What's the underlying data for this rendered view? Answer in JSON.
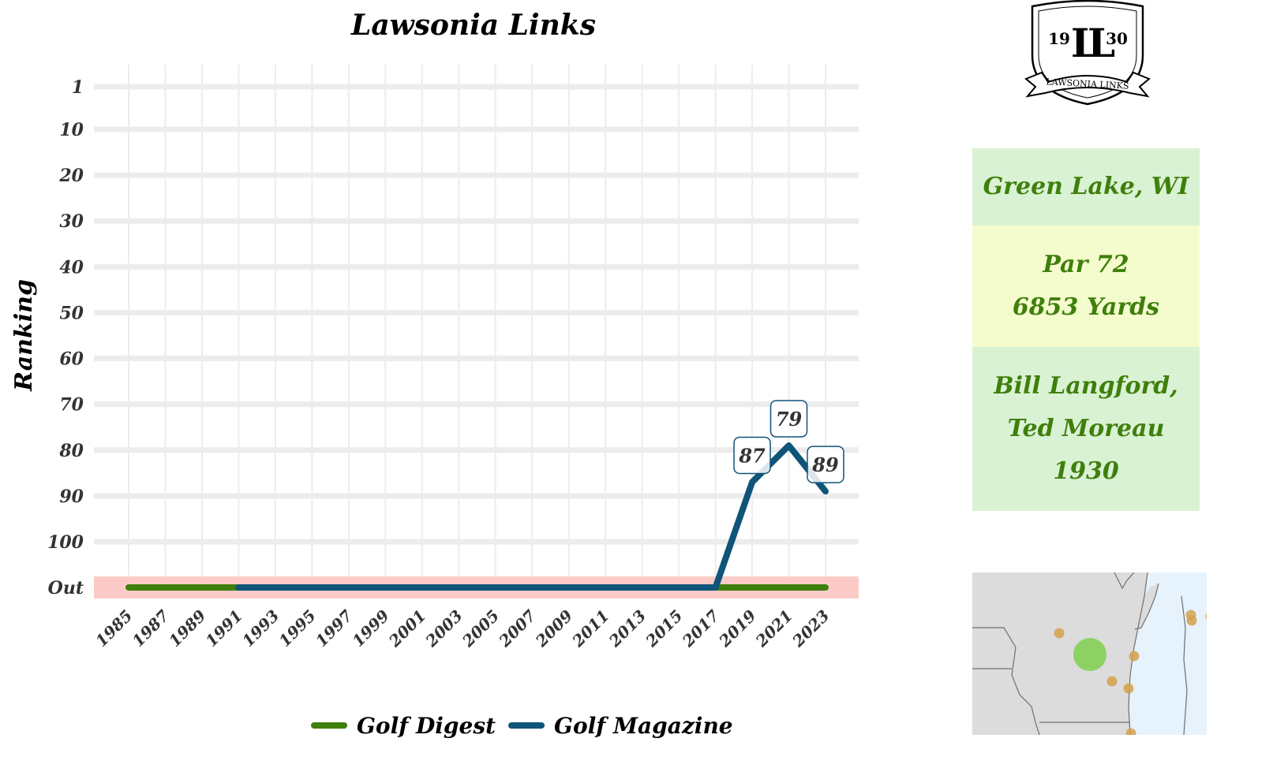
{
  "chart_data": {
    "type": "line",
    "title": "Lawsonia Links",
    "ylabel": "Ranking",
    "xlabel": "",
    "x_ticks": [
      "1985",
      "1987",
      "1989",
      "1991",
      "1993",
      "1995",
      "1997",
      "1999",
      "2001",
      "2003",
      "2005",
      "2007",
      "2009",
      "2011",
      "2013",
      "2015",
      "2017",
      "2019",
      "2021",
      "2023"
    ],
    "y_ticks": [
      "1",
      "10",
      "20",
      "30",
      "40",
      "50",
      "60",
      "70",
      "80",
      "90",
      "100",
      "Out"
    ],
    "y_tick_values": [
      1,
      10,
      20,
      30,
      40,
      50,
      60,
      70,
      80,
      90,
      100,
      110
    ],
    "y_reversed": true,
    "out_value": 110,
    "out_band_color": "#fccbc7",
    "grid": true,
    "legend_position": "bottom",
    "series": [
      {
        "name": "Golf Digest",
        "color": "#3f7f0c",
        "points": [
          {
            "x": 1985,
            "y": "Out"
          },
          {
            "x": 2023,
            "y": "Out"
          }
        ]
      },
      {
        "name": "Golf Magazine",
        "color": "#0f5479",
        "points": [
          {
            "x": 1991,
            "y": "Out"
          },
          {
            "x": 2017,
            "y": "Out"
          },
          {
            "x": 2019,
            "y": 87
          },
          {
            "x": 2021,
            "y": 79
          },
          {
            "x": 2023,
            "y": 89
          }
        ]
      }
    ],
    "data_labels": [
      {
        "series": "Golf Magazine",
        "x": 2019,
        "y": 87,
        "text": "87"
      },
      {
        "series": "Golf Magazine",
        "x": 2021,
        "y": 79,
        "text": "79"
      },
      {
        "series": "Golf Magazine",
        "x": 2023,
        "y": 89,
        "text": "89"
      }
    ]
  },
  "info": {
    "location": "Green Lake, WI",
    "par": "Par 72",
    "yards": "6853 Yards",
    "architects_line1": "Bill Langford,",
    "architects_line2": "Ted Moreau",
    "year": "1930",
    "colors": {
      "block1": "#d9f2d3",
      "block2": "#f4fccd",
      "block3": "#d9f2d3",
      "text": "#3f7f0c"
    }
  },
  "logo": {
    "year_left": "19",
    "year_right": "30",
    "monogram": "LL",
    "banner_text": "LAWSONIA LINKS"
  },
  "map": {
    "land_color": "#dcdcdc",
    "water_color": "#e6f2fc",
    "highlight_color": "#7fcf4f",
    "marker_color": "#d4a24c"
  }
}
